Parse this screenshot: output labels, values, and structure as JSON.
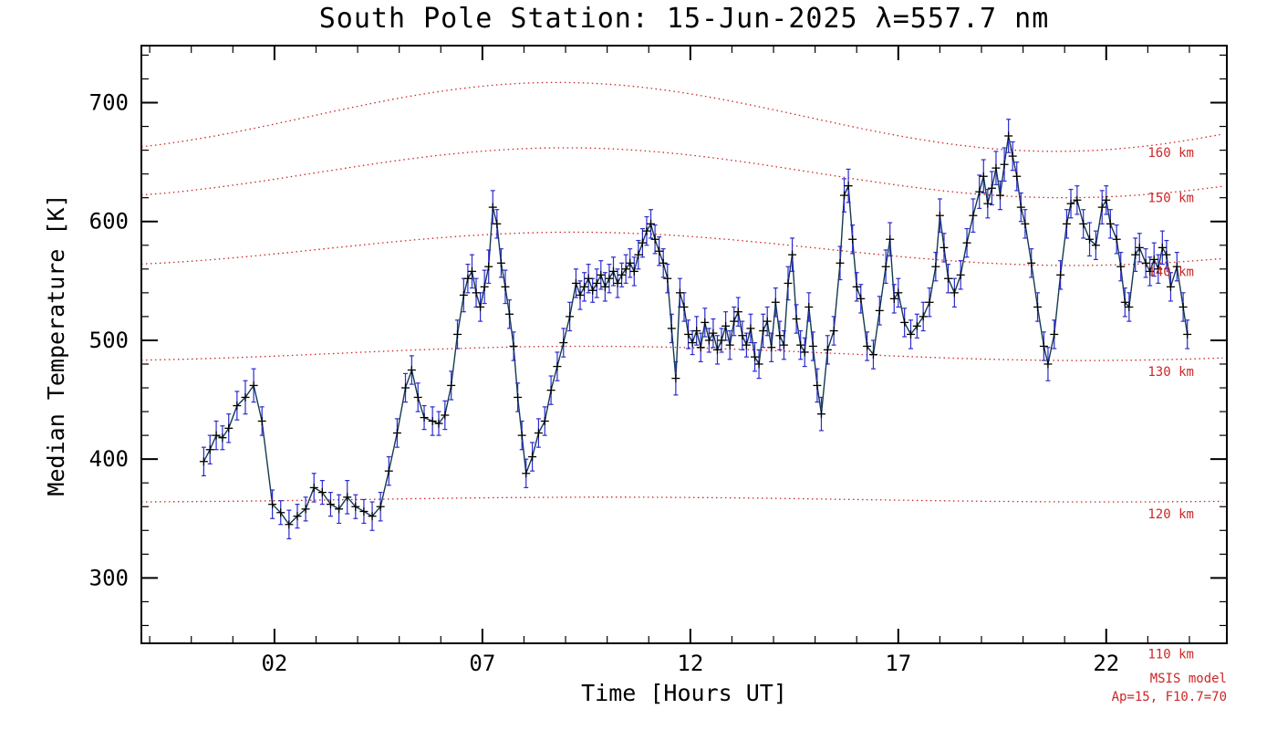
{
  "title": "South Pole Station: 15-Jun-2025 λ=557.7 nm",
  "colors": {
    "frame": "#000000",
    "data_line": "#143a4e",
    "error_bar": "#2b2bd0",
    "marker": "#000000",
    "model": "#cc2626",
    "background": "#ffffff"
  },
  "chart_data": {
    "type": "line",
    "title": "South Pole Station: 15-Jun-2025 λ=557.7 nm",
    "xlabel": "Time [Hours UT]",
    "ylabel": "Median Temperature [K]",
    "xlim": [
      -1.2,
      24.9
    ],
    "ylim": [
      245,
      748
    ],
    "grid": false,
    "legend": "none",
    "x_major_ticks": [
      2,
      7,
      12,
      17,
      22
    ],
    "x_tick_labels": [
      "02",
      "07",
      "12",
      "17",
      "22"
    ],
    "x_minor_step": 1,
    "y_major_ticks": [
      300,
      400,
      500,
      600,
      700
    ],
    "y_tick_labels": [
      "300",
      "400",
      "500",
      "600",
      "700"
    ],
    "y_minor_step": 20,
    "series": [
      {
        "name": "median-temperature",
        "marker": "plus",
        "units": "K",
        "points": [
          [
            0.3,
            398,
            12
          ],
          [
            0.45,
            408,
            12
          ],
          [
            0.6,
            420,
            12
          ],
          [
            0.75,
            418,
            10
          ],
          [
            0.9,
            426,
            12
          ],
          [
            1.1,
            445,
            12
          ],
          [
            1.3,
            452,
            14
          ],
          [
            1.5,
            462,
            14
          ],
          [
            1.7,
            432,
            12
          ],
          [
            1.95,
            362,
            12
          ],
          [
            2.15,
            355,
            10
          ],
          [
            2.35,
            345,
            12
          ],
          [
            2.55,
            352,
            10
          ],
          [
            2.75,
            358,
            10
          ],
          [
            2.95,
            376,
            12
          ],
          [
            3.15,
            372,
            10
          ],
          [
            3.35,
            362,
            10
          ],
          [
            3.55,
            358,
            12
          ],
          [
            3.75,
            368,
            14
          ],
          [
            3.95,
            360,
            10
          ],
          [
            4.15,
            356,
            10
          ],
          [
            4.35,
            352,
            12
          ],
          [
            4.55,
            360,
            12
          ],
          [
            4.75,
            390,
            12
          ],
          [
            4.95,
            422,
            12
          ],
          [
            5.15,
            460,
            12
          ],
          [
            5.3,
            475,
            12
          ],
          [
            5.45,
            452,
            12
          ],
          [
            5.6,
            435,
            10
          ],
          [
            5.8,
            432,
            12
          ],
          [
            5.95,
            430,
            10
          ],
          [
            6.1,
            437,
            12
          ],
          [
            6.25,
            462,
            12
          ],
          [
            6.4,
            505,
            12
          ],
          [
            6.55,
            538,
            14
          ],
          [
            6.65,
            552,
            12
          ],
          [
            6.75,
            558,
            14
          ],
          [
            6.85,
            540,
            12
          ],
          [
            6.95,
            528,
            12
          ],
          [
            7.05,
            545,
            14
          ],
          [
            7.15,
            562,
            14
          ],
          [
            7.25,
            612,
            14
          ],
          [
            7.35,
            598,
            12
          ],
          [
            7.45,
            565,
            12
          ],
          [
            7.55,
            545,
            14
          ],
          [
            7.65,
            522,
            12
          ],
          [
            7.75,
            495,
            12
          ],
          [
            7.85,
            452,
            12
          ],
          [
            7.95,
            420,
            12
          ],
          [
            8.05,
            388,
            12
          ],
          [
            8.2,
            402,
            12
          ],
          [
            8.35,
            422,
            12
          ],
          [
            8.5,
            432,
            12
          ],
          [
            8.65,
            458,
            12
          ],
          [
            8.8,
            478,
            12
          ],
          [
            8.95,
            498,
            12
          ],
          [
            9.1,
            520,
            12
          ],
          [
            9.25,
            548,
            12
          ],
          [
            9.35,
            538,
            12
          ],
          [
            9.45,
            545,
            12
          ],
          [
            9.55,
            552,
            12
          ],
          [
            9.65,
            542,
            10
          ],
          [
            9.75,
            548,
            12
          ],
          [
            9.85,
            555,
            12
          ],
          [
            9.95,
            545,
            12
          ],
          [
            10.05,
            552,
            12
          ],
          [
            10.15,
            558,
            12
          ],
          [
            10.25,
            548,
            12
          ],
          [
            10.35,
            555,
            10
          ],
          [
            10.45,
            560,
            12
          ],
          [
            10.55,
            565,
            12
          ],
          [
            10.65,
            558,
            12
          ],
          [
            10.75,
            572,
            12
          ],
          [
            10.85,
            582,
            12
          ],
          [
            10.95,
            592,
            12
          ],
          [
            11.05,
            598,
            12
          ],
          [
            11.15,
            585,
            12
          ],
          [
            11.25,
            575,
            12
          ],
          [
            11.35,
            565,
            12
          ],
          [
            11.45,
            552,
            12
          ],
          [
            11.55,
            510,
            12
          ],
          [
            11.65,
            468,
            14
          ],
          [
            11.75,
            540,
            12
          ],
          [
            11.85,
            528,
            12
          ],
          [
            11.95,
            505,
            12
          ],
          [
            12.05,
            498,
            10
          ],
          [
            12.15,
            508,
            12
          ],
          [
            12.25,
            494,
            12
          ],
          [
            12.35,
            515,
            12
          ],
          [
            12.45,
            500,
            10
          ],
          [
            12.55,
            506,
            12
          ],
          [
            12.65,
            492,
            12
          ],
          [
            12.75,
            500,
            10
          ],
          [
            12.85,
            512,
            12
          ],
          [
            12.95,
            496,
            12
          ],
          [
            13.05,
            516,
            12
          ],
          [
            13.15,
            524,
            12
          ],
          [
            13.25,
            504,
            12
          ],
          [
            13.35,
            496,
            10
          ],
          [
            13.45,
            510,
            12
          ],
          [
            13.55,
            486,
            12
          ],
          [
            13.65,
            480,
            12
          ],
          [
            13.75,
            508,
            14
          ],
          [
            13.85,
            516,
            12
          ],
          [
            13.95,
            494,
            12
          ],
          [
            14.05,
            532,
            12
          ],
          [
            14.15,
            504,
            12
          ],
          [
            14.25,
            496,
            12
          ],
          [
            14.35,
            548,
            14
          ],
          [
            14.45,
            572,
            14
          ],
          [
            14.55,
            518,
            12
          ],
          [
            14.65,
            496,
            12
          ],
          [
            14.75,
            490,
            12
          ],
          [
            14.85,
            528,
            12
          ],
          [
            14.95,
            495,
            12
          ],
          [
            15.05,
            462,
            14
          ],
          [
            15.15,
            438,
            14
          ],
          [
            15.3,
            492,
            12
          ],
          [
            15.45,
            508,
            12
          ],
          [
            15.6,
            565,
            14
          ],
          [
            15.7,
            622,
            14
          ],
          [
            15.8,
            630,
            14
          ],
          [
            15.9,
            585,
            12
          ],
          [
            16.0,
            545,
            12
          ],
          [
            16.1,
            535,
            12
          ],
          [
            16.25,
            495,
            12
          ],
          [
            16.4,
            488,
            12
          ],
          [
            16.55,
            525,
            12
          ],
          [
            16.7,
            562,
            14
          ],
          [
            16.8,
            585,
            14
          ],
          [
            16.9,
            535,
            12
          ],
          [
            17.0,
            540,
            12
          ],
          [
            17.15,
            515,
            12
          ],
          [
            17.3,
            505,
            12
          ],
          [
            17.45,
            512,
            10
          ],
          [
            17.6,
            520,
            12
          ],
          [
            17.75,
            532,
            12
          ],
          [
            17.9,
            562,
            12
          ],
          [
            18.0,
            605,
            14
          ],
          [
            18.1,
            578,
            12
          ],
          [
            18.2,
            552,
            12
          ],
          [
            18.35,
            540,
            12
          ],
          [
            18.5,
            555,
            12
          ],
          [
            18.65,
            582,
            12
          ],
          [
            18.8,
            605,
            14
          ],
          [
            18.95,
            625,
            14
          ],
          [
            19.05,
            638,
            14
          ],
          [
            19.15,
            615,
            12
          ],
          [
            19.25,
            628,
            14
          ],
          [
            19.35,
            645,
            14
          ],
          [
            19.45,
            622,
            12
          ],
          [
            19.55,
            648,
            14
          ],
          [
            19.65,
            672,
            14
          ],
          [
            19.75,
            655,
            12
          ],
          [
            19.85,
            638,
            12
          ],
          [
            19.95,
            612,
            12
          ],
          [
            20.05,
            598,
            12
          ],
          [
            20.2,
            565,
            12
          ],
          [
            20.35,
            528,
            12
          ],
          [
            20.5,
            495,
            12
          ],
          [
            20.6,
            480,
            14
          ],
          [
            20.75,
            505,
            12
          ],
          [
            20.9,
            555,
            12
          ],
          [
            21.05,
            598,
            12
          ],
          [
            21.15,
            615,
            12
          ],
          [
            21.3,
            618,
            12
          ],
          [
            21.45,
            598,
            12
          ],
          [
            21.6,
            585,
            14
          ],
          [
            21.75,
            580,
            12
          ],
          [
            21.9,
            612,
            14
          ],
          [
            22.0,
            618,
            12
          ],
          [
            22.1,
            598,
            12
          ],
          [
            22.25,
            585,
            12
          ],
          [
            22.35,
            562,
            12
          ],
          [
            22.45,
            532,
            12
          ],
          [
            22.55,
            528,
            12
          ],
          [
            22.7,
            572,
            14
          ],
          [
            22.8,
            578,
            12
          ],
          [
            22.95,
            565,
            12
          ],
          [
            23.05,
            558,
            12
          ],
          [
            23.15,
            568,
            14
          ],
          [
            23.25,
            560,
            12
          ],
          [
            23.35,
            578,
            14
          ],
          [
            23.45,
            572,
            12
          ],
          [
            23.55,
            545,
            12
          ],
          [
            23.7,
            562,
            12
          ],
          [
            23.85,
            528,
            12
          ],
          [
            23.95,
            505,
            12
          ]
        ]
      }
    ],
    "model_curves": [
      {
        "label": "160 km",
        "base": 688,
        "amplitude": 29,
        "peak_hour": 8.8,
        "label_k": 658
      },
      {
        "label": "150 km",
        "base": 641,
        "amplitude": 21,
        "peak_hour": 9.0,
        "label_k": 620
      },
      {
        "label": "140 km",
        "base": 577,
        "amplitude": 14,
        "peak_hour": 9.2,
        "label_k": 558
      },
      {
        "label": "130 km",
        "base": 489,
        "amplitude": 6,
        "peak_hour": 9.5,
        "label_k": 474
      },
      {
        "label": "120 km",
        "base": 366,
        "amplitude": 2,
        "peak_hour": 10.0,
        "label_k": 354
      },
      {
        "label": "110 km",
        "base": 240,
        "amplitude": 2,
        "peak_hour": 10.0,
        "label_k": 236
      }
    ],
    "model_label_hour": 23.0,
    "model_annotation": [
      "MSIS model",
      "Ap=15, F10.7=70"
    ]
  }
}
